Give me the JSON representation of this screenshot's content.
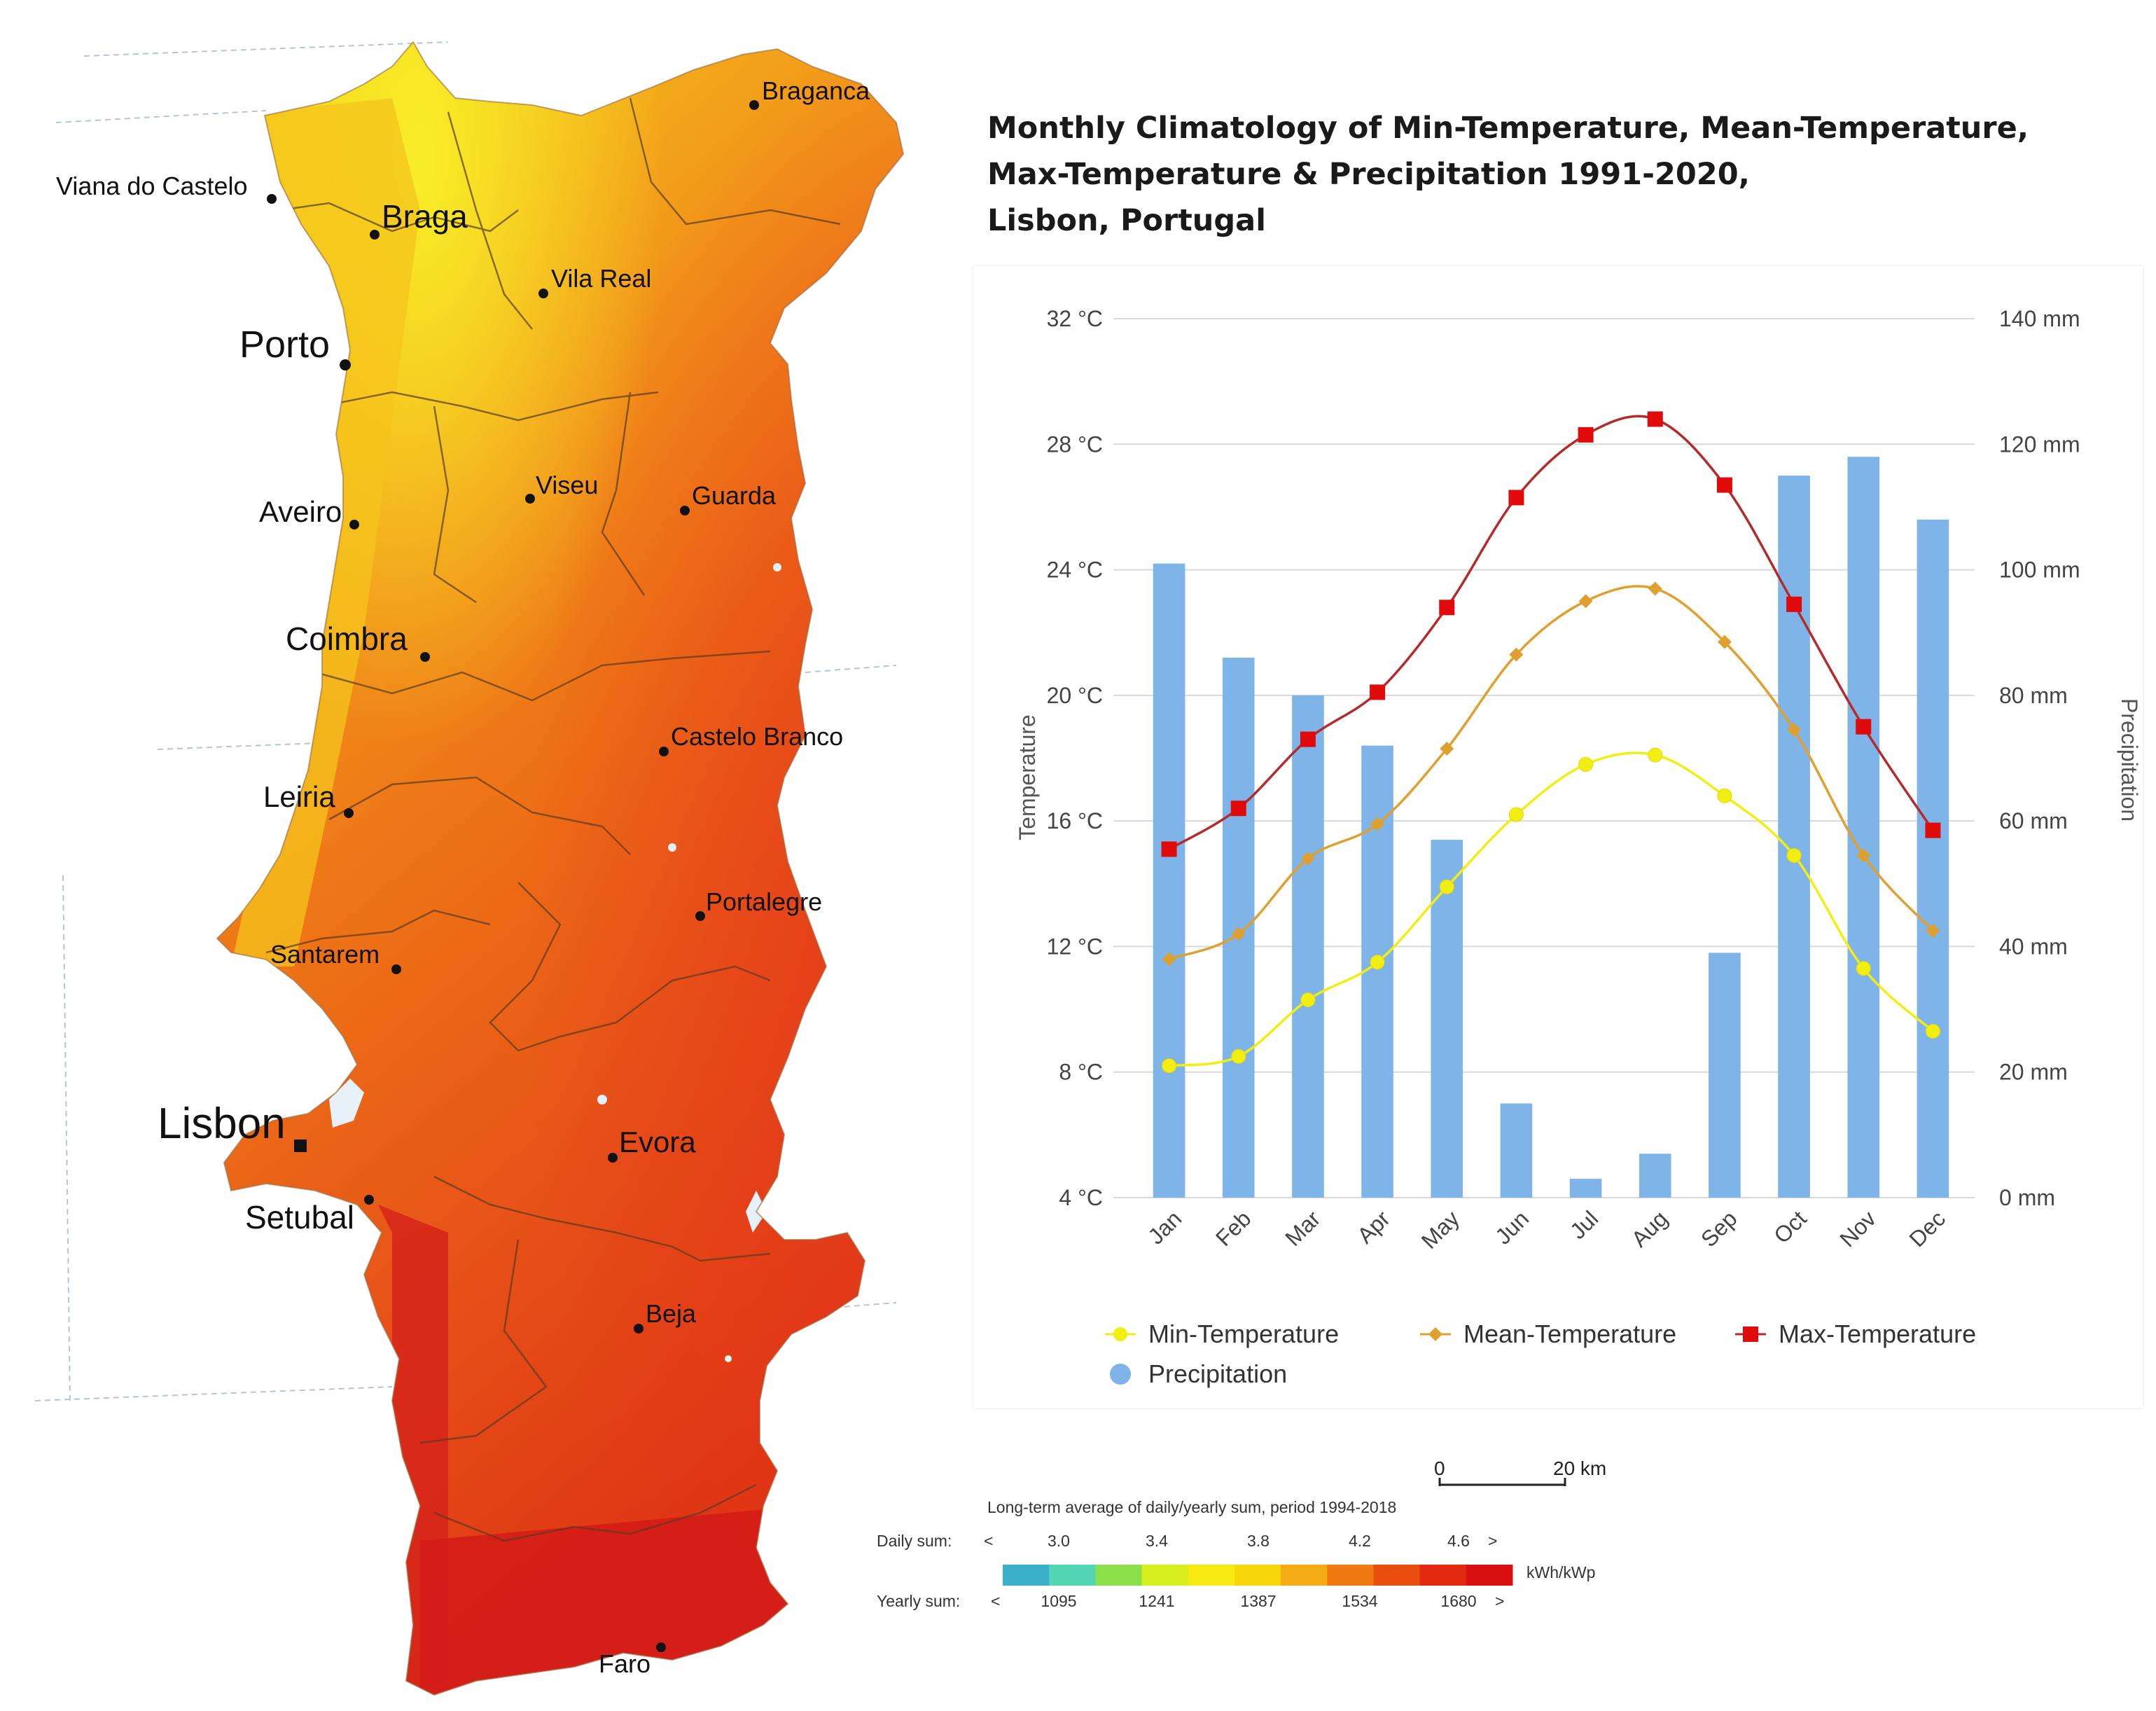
{
  "map": {
    "cities": [
      {
        "name": "Braganca",
        "size": "small"
      },
      {
        "name": "Viana do Castelo",
        "size": "small"
      },
      {
        "name": "Braga",
        "size": "medium"
      },
      {
        "name": "Vila Real",
        "size": "small"
      },
      {
        "name": "Porto",
        "size": "large"
      },
      {
        "name": "Aveiro",
        "size": "medium"
      },
      {
        "name": "Viseu",
        "size": "small"
      },
      {
        "name": "Guarda",
        "size": "small"
      },
      {
        "name": "Coimbra",
        "size": "medium"
      },
      {
        "name": "Castelo Branco",
        "size": "small"
      },
      {
        "name": "Leiria",
        "size": "medium"
      },
      {
        "name": "Portalegre",
        "size": "small"
      },
      {
        "name": "Santarem",
        "size": "small"
      },
      {
        "name": "Lisbon",
        "size": "xlarge"
      },
      {
        "name": "Evora",
        "size": "medium"
      },
      {
        "name": "Setubal",
        "size": "medium"
      },
      {
        "name": "Beja",
        "size": "small"
      },
      {
        "name": "Faro",
        "size": "small"
      }
    ],
    "scale_bar": {
      "start": "0",
      "end": "20 km"
    },
    "legend": {
      "title": "Long-term average of daily/yearly sum, period 1994-2018",
      "daily_label": "Daily sum:",
      "yearly_label": "Yearly sum:",
      "lt": "<",
      "gt": ">",
      "daily_values": [
        "3.0",
        "3.4",
        "3.8",
        "4.2",
        "4.6"
      ],
      "yearly_values": [
        "1095",
        "1241",
        "1387",
        "1534",
        "1680"
      ],
      "unit": "kWh/kWp",
      "colors": [
        "#3bb0c9",
        "#52d6b5",
        "#8be04a",
        "#d8ee1e",
        "#f6ea12",
        "#f7d60c",
        "#f5ac14",
        "#f07a10",
        "#e94e10",
        "#e22a10",
        "#d81010"
      ]
    }
  },
  "chart_data": {
    "type": "bar+line",
    "title": [
      "Monthly Climatology of Min-Temperature, Mean-Temperature,",
      "Max-Temperature & Precipitation 1991-2020,",
      "Lisbon, Portugal"
    ],
    "categories": [
      "Jan",
      "Feb",
      "Mar",
      "Apr",
      "May",
      "Jun",
      "Jul",
      "Aug",
      "Sep",
      "Oct",
      "Nov",
      "Dec"
    ],
    "ylabel_left": "Temperature",
    "ylabel_right": "Precipitation",
    "ylim_left": [
      4,
      32
    ],
    "ylim_right": [
      0,
      140
    ],
    "yticks_left": [
      "4 °C",
      "8 °C",
      "12 °C",
      "16 °C",
      "20 °C",
      "24 °C",
      "28 °C",
      "32 °C"
    ],
    "yticks_right": [
      "0 mm",
      "20 mm",
      "40 mm",
      "60 mm",
      "80 mm",
      "100 mm",
      "120 mm",
      "140 mm"
    ],
    "series": [
      {
        "name": "Min-Temperature",
        "axis": "left",
        "kind": "line",
        "color": "#f2ee12",
        "marker": "circle",
        "values": [
          8.2,
          8.5,
          10.3,
          11.5,
          13.9,
          16.2,
          17.8,
          18.1,
          16.8,
          14.9,
          11.3,
          9.3
        ]
      },
      {
        "name": "Mean-Temperature",
        "axis": "left",
        "kind": "line",
        "color": "#e0a030",
        "marker": "diamond",
        "values": [
          11.6,
          12.4,
          14.8,
          15.9,
          18.3,
          21.3,
          23.0,
          23.4,
          21.7,
          18.9,
          14.9,
          12.5
        ]
      },
      {
        "name": "Max-Temperature",
        "axis": "left",
        "kind": "line",
        "color": "#e00a0a",
        "line_color": "#b52a2a",
        "marker": "square",
        "values": [
          15.1,
          16.4,
          18.6,
          20.1,
          22.8,
          26.3,
          28.3,
          28.8,
          26.7,
          22.9,
          19.0,
          15.7
        ]
      },
      {
        "name": "Precipitation",
        "axis": "right",
        "kind": "bar",
        "color": "#7fb4e8",
        "values": [
          101,
          86,
          80,
          72,
          57,
          15,
          3,
          7,
          39,
          115,
          118,
          108
        ]
      }
    ]
  }
}
